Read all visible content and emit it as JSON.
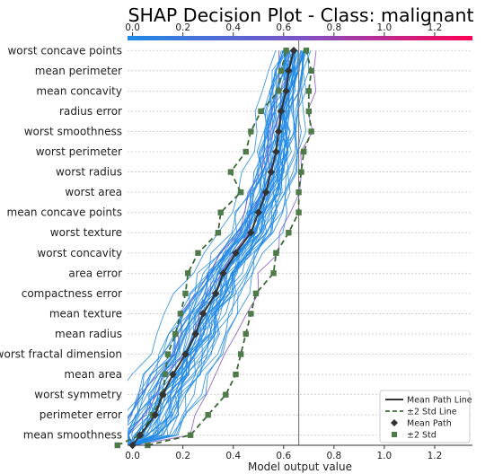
{
  "chart_data": {
    "type": "line",
    "title": "SHAP Decision Plot - Class: malignant",
    "xlabel": "Model output value",
    "xlim": [
      -0.02,
      1.35
    ],
    "xticks": [
      0.0,
      0.2,
      0.4,
      0.6,
      0.8,
      1.0,
      1.2
    ],
    "colorbar_ticks": [
      0.0,
      0.2,
      0.4,
      0.6,
      0.8,
      1.0,
      1.2
    ],
    "base_value": 0.66,
    "grid": "horizontal-dashed",
    "legend_position": "lower-right",
    "colors": {
      "sample_lines": "#1e88e5",
      "high_value": "#ff0052",
      "mean_path": "#333333",
      "std_line": "#3a6b35",
      "std_marker": "#4f7a4a",
      "base_line": "#808080"
    },
    "features": [
      "worst concave points",
      "mean perimeter",
      "mean concavity",
      "radius error",
      "worst smoothness",
      "worst perimeter",
      "worst radius",
      "worst area",
      "mean concave points",
      "worst texture",
      "worst concavity",
      "area error",
      "compactness error",
      "mean texture",
      "mean radius",
      "worst fractal dimension",
      "mean area",
      "worst symmetry",
      "perimeter error",
      "mean smoothness"
    ],
    "mean_path": [
      0.0,
      0.03,
      0.09,
      0.12,
      0.16,
      0.21,
      0.25,
      0.28,
      0.33,
      0.36,
      0.41,
      0.47,
      0.5,
      0.53,
      0.55,
      0.57,
      0.58,
      0.59,
      0.61,
      0.62,
      0.64
    ],
    "upper_2std": [
      0.06,
      0.23,
      0.3,
      0.37,
      0.41,
      0.43,
      0.45,
      0.47,
      0.49,
      0.56,
      0.57,
      0.62,
      0.66,
      0.66,
      0.67,
      0.68,
      0.71,
      0.7,
      0.7,
      0.71,
      0.69
    ],
    "lower_2std": [
      -0.06,
      0.03,
      0.08,
      0.12,
      0.13,
      0.14,
      0.17,
      0.19,
      0.21,
      0.22,
      0.26,
      0.34,
      0.35,
      0.43,
      0.39,
      0.45,
      0.47,
      0.51,
      0.58,
      0.59,
      0.61
    ],
    "legend": [
      {
        "label": "Mean Path Line",
        "kind": "solid-line"
      },
      {
        "label": "±2 Std Line",
        "kind": "dashed-line"
      },
      {
        "label": "Mean Path",
        "kind": "diamond"
      },
      {
        "label": "±2 Std",
        "kind": "square"
      }
    ]
  }
}
